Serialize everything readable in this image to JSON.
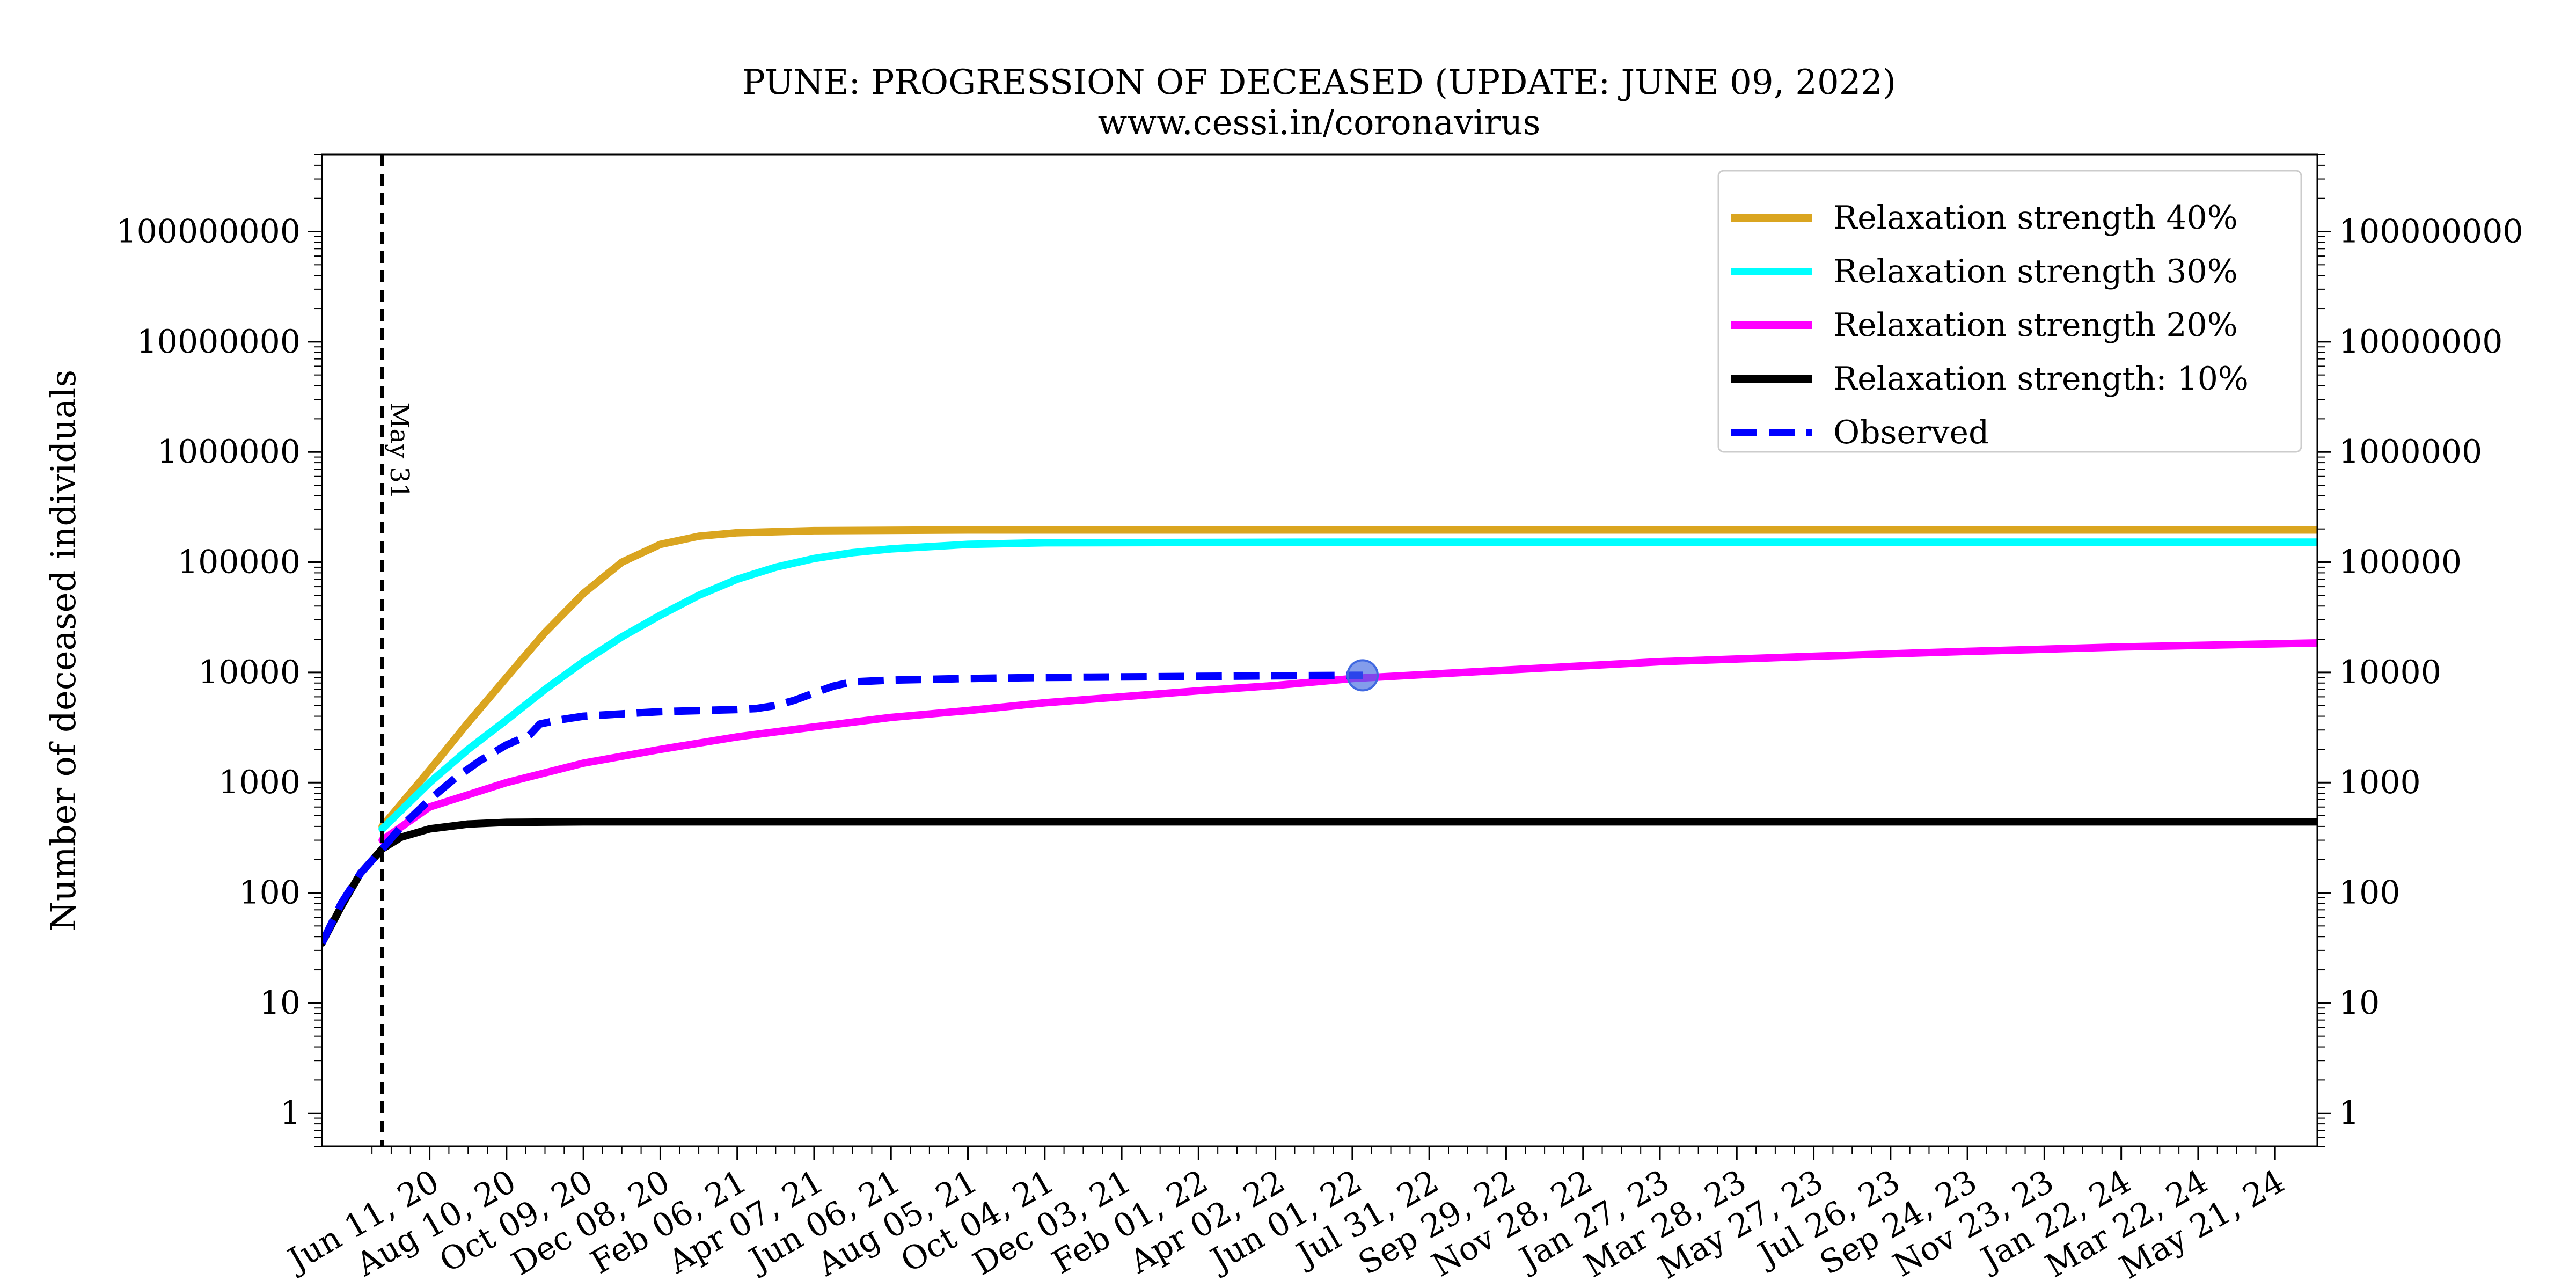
{
  "chart_data": {
    "type": "line",
    "title": "PUNE: PROGRESSION OF DECEASED (UPDATE: JUNE 09, 2022)",
    "subtitle": "www.cessi.in/coronavirus",
    "xlabel": "",
    "ylabel": "Number of deceased individuals",
    "y_scale": "log",
    "ylim": [
      0.5,
      500000000
    ],
    "xlim": [
      "2020-03-19",
      "2024-06-23"
    ],
    "y_ticks": [
      1,
      10,
      100,
      1000,
      10000,
      100000,
      1000000,
      10000000,
      100000000
    ],
    "y_tick_labels": [
      "1",
      "10",
      "100",
      "1000",
      "10000",
      "100000",
      "1000000",
      "10000000",
      "100000000"
    ],
    "y_axis_right_mirrored": true,
    "x_ticks": [
      "2020-06-11",
      "2020-08-10",
      "2020-10-09",
      "2020-12-08",
      "2021-02-06",
      "2021-04-07",
      "2021-06-06",
      "2021-08-05",
      "2021-10-04",
      "2021-12-03",
      "2022-02-01",
      "2022-04-02",
      "2022-06-01",
      "2022-07-31",
      "2022-09-29",
      "2022-11-28",
      "2023-01-27",
      "2023-03-28",
      "2023-05-27",
      "2023-07-26",
      "2023-09-24",
      "2023-11-23",
      "2024-01-22",
      "2024-03-22",
      "2024-05-21"
    ],
    "x_tick_labels": [
      "Jun 11, 20",
      "Aug 10, 20",
      "Oct 09, 20",
      "Dec 08, 20",
      "Feb 06, 21",
      "Apr 07, 21",
      "Jun 06, 21",
      "Aug 05, 21",
      "Oct 04, 21",
      "Dec 03, 21",
      "Feb 01, 22",
      "Apr 02, 22",
      "Jun 01, 22",
      "Jul 31, 22",
      "Sep 29, 22",
      "Nov 28, 22",
      "Jan 27, 23",
      "Mar 28, 23",
      "May 27, 23",
      "Jul 26, 23",
      "Sep 24, 23",
      "Nov 23, 23",
      "Jan 22, 24",
      "Mar 22, 24",
      "May 21, 24"
    ],
    "vline": {
      "x": "2020-05-05",
      "label": "May 31",
      "style": "dashed"
    },
    "legend_position": "top-right",
    "grid": false,
    "series": [
      {
        "name": "Relaxation strength 40%",
        "color": "#DAA520",
        "style": "solid",
        "x": [
          "2020-05-05",
          "2020-06-11",
          "2020-07-11",
          "2020-08-10",
          "2020-09-09",
          "2020-10-09",
          "2020-11-08",
          "2020-12-08",
          "2021-01-07",
          "2021-02-06",
          "2021-04-07",
          "2021-08-05",
          "2022-06-01",
          "2023-05-27",
          "2024-06-23"
        ],
        "values": [
          400,
          1300,
          3500,
          9000,
          23000,
          52000,
          100000,
          145000,
          172000,
          185000,
          193000,
          196000,
          196000,
          196000,
          196000
        ]
      },
      {
        "name": "Relaxation strength 30%",
        "color": "#00FFFF",
        "style": "solid",
        "x": [
          "2020-05-05",
          "2020-06-11",
          "2020-07-11",
          "2020-08-10",
          "2020-09-09",
          "2020-10-09",
          "2020-11-08",
          "2020-12-08",
          "2021-01-07",
          "2021-02-06",
          "2021-03-08",
          "2021-04-07",
          "2021-05-07",
          "2021-06-06",
          "2021-08-05",
          "2021-10-04",
          "2022-06-01",
          "2023-05-27",
          "2024-06-23"
        ],
        "values": [
          380,
          1000,
          2000,
          3700,
          7000,
          12500,
          21000,
          33000,
          50000,
          70000,
          90000,
          108000,
          122000,
          132000,
          145000,
          150000,
          152000,
          152000,
          152000
        ]
      },
      {
        "name": "Relaxation strength 20%",
        "color": "#FF00FF",
        "style": "solid",
        "x": [
          "2020-05-05",
          "2020-06-11",
          "2020-08-10",
          "2020-10-09",
          "2020-12-08",
          "2021-02-06",
          "2021-04-07",
          "2021-06-06",
          "2021-08-05",
          "2021-10-04",
          "2021-12-03",
          "2022-02-01",
          "2022-04-02",
          "2022-06-01",
          "2022-09-29",
          "2023-01-27",
          "2023-05-27",
          "2023-09-24",
          "2024-01-22",
          "2024-06-23"
        ],
        "values": [
          300,
          600,
          1000,
          1500,
          2000,
          2600,
          3200,
          3900,
          4500,
          5300,
          6000,
          6800,
          7600,
          8800,
          10500,
          12500,
          14000,
          15500,
          17000,
          18500
        ]
      },
      {
        "name": "Relaxation strength: 10%",
        "color": "#000000",
        "style": "solid",
        "x": [
          "2020-03-19",
          "2020-04-03",
          "2020-04-18",
          "2020-05-05",
          "2020-05-20",
          "2020-06-11",
          "2020-07-11",
          "2020-08-10",
          "2020-10-09",
          "2021-06-06",
          "2022-06-01",
          "2023-05-27",
          "2024-06-23"
        ],
        "values": [
          35,
          75,
          150,
          250,
          320,
          380,
          420,
          435,
          440,
          440,
          440,
          440,
          440
        ]
      },
      {
        "name": "Observed",
        "color": "#0000FF",
        "style": "dashed",
        "x": [
          "2020-03-19",
          "2020-04-03",
          "2020-04-18",
          "2020-05-05",
          "2020-05-20",
          "2020-06-11",
          "2020-07-01",
          "2020-07-21",
          "2020-08-10",
          "2020-08-28",
          "2020-09-05",
          "2020-09-20",
          "2020-10-09",
          "2020-11-08",
          "2020-12-08",
          "2021-01-07",
          "2021-02-06",
          "2021-02-21",
          "2021-03-08",
          "2021-03-23",
          "2021-04-07",
          "2021-04-22",
          "2021-05-07",
          "2021-06-06",
          "2021-08-05",
          "2021-10-04",
          "2021-12-03",
          "2022-02-01",
          "2022-04-02",
          "2022-06-01",
          "2022-06-09"
        ],
        "values": [
          35,
          80,
          150,
          250,
          400,
          700,
          1100,
          1600,
          2200,
          2700,
          3400,
          3700,
          4000,
          4200,
          4400,
          4500,
          4600,
          4700,
          5000,
          5600,
          6500,
          7500,
          8200,
          8500,
          8800,
          9000,
          9100,
          9200,
          9300,
          9400,
          9400
        ]
      }
    ],
    "marker": {
      "x": "2022-06-09",
      "y": 9400,
      "color": "#4169E1"
    }
  }
}
